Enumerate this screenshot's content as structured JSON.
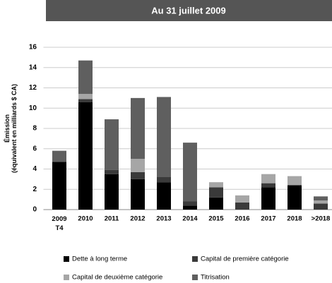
{
  "chart_data": {
    "type": "stacked_bar",
    "title": "Au 31 juillet 2009",
    "ylabel": [
      "Émission",
      "(équivalent en milliards $ CA)"
    ],
    "categories": [
      "2009 T4",
      "2010",
      "2011",
      "2012",
      "2013",
      "2014",
      "2015",
      "2016",
      "2017",
      "2018",
      ">2018"
    ],
    "series": [
      {
        "name": "Dette à long terme",
        "color": "#000000",
        "values": [
          4.7,
          10.6,
          3.5,
          3.0,
          2.7,
          0.4,
          1.2,
          0,
          2.2,
          2.4,
          0
        ]
      },
      {
        "name": "Capital de première catégorie",
        "color": "#3a3a3a",
        "values": [
          0,
          0.3,
          0.4,
          0.7,
          0.5,
          0.4,
          1.0,
          0.7,
          0.4,
          0,
          0.6
        ]
      },
      {
        "name": "Capital de deuxième catégorie",
        "color": "#a6a6a6",
        "values": [
          0,
          0.5,
          0,
          1.3,
          0,
          0,
          0.5,
          0.7,
          0.9,
          0.9,
          0.3
        ]
      },
      {
        "name": "Titrisation",
        "color": "#5f5f5f",
        "values": [
          1.1,
          3.3,
          5.0,
          6.0,
          7.9,
          5.8,
          0,
          0,
          0,
          0,
          0.4
        ]
      }
    ],
    "ylim": [
      0,
      16
    ],
    "yticks": [
      0,
      2,
      4,
      6,
      8,
      10,
      12,
      14,
      16
    ],
    "grid": true
  }
}
